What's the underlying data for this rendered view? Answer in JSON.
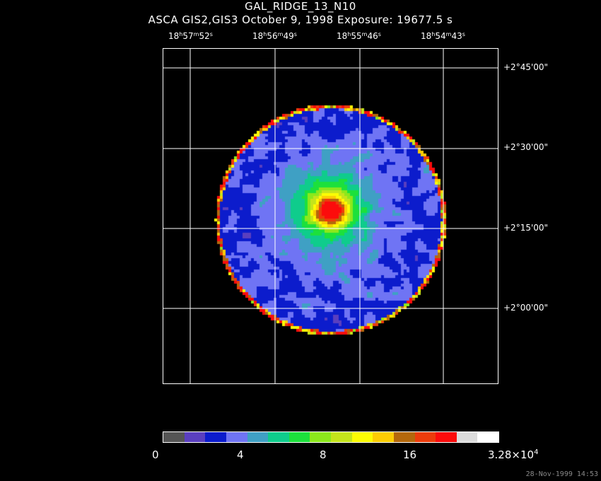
{
  "header": {
    "title": "GAL_RIDGE_13_N10",
    "subtitle": "ASCA GIS2,GIS3 October 9, 1998 Exposure: 19677.5 s"
  },
  "ra_labels": [
    {
      "h": "18",
      "m": "57",
      "s": "52"
    },
    {
      "h": "18",
      "m": "56",
      "s": "49"
    },
    {
      "h": "18",
      "m": "55",
      "s": "46"
    },
    {
      "h": "18",
      "m": "54",
      "s": "43"
    }
  ],
  "dec_labels": [
    "+2°45'00\"",
    "+2°30'00\"",
    "+2°15'00\"",
    "+2°00'00\""
  ],
  "colorbar": {
    "colors": [
      "#555555",
      "#5a3fbf",
      "#0c1ccc",
      "#6f74f4",
      "#3fa0c4",
      "#0fcc8c",
      "#1ce03c",
      "#8ce81c",
      "#c4e41c",
      "#fcfc04",
      "#fccc04",
      "#b4680c",
      "#ec3c0c",
      "#fc0c0c",
      "#dcdcdc",
      "#ffffff"
    ],
    "tick_labels": [
      "0",
      "4",
      "8",
      "16"
    ],
    "max_mantissa": "3.28",
    "max_times": "×10",
    "max_exponent": "4"
  },
  "timestamp": "28-Nov-1999 14:53"
}
